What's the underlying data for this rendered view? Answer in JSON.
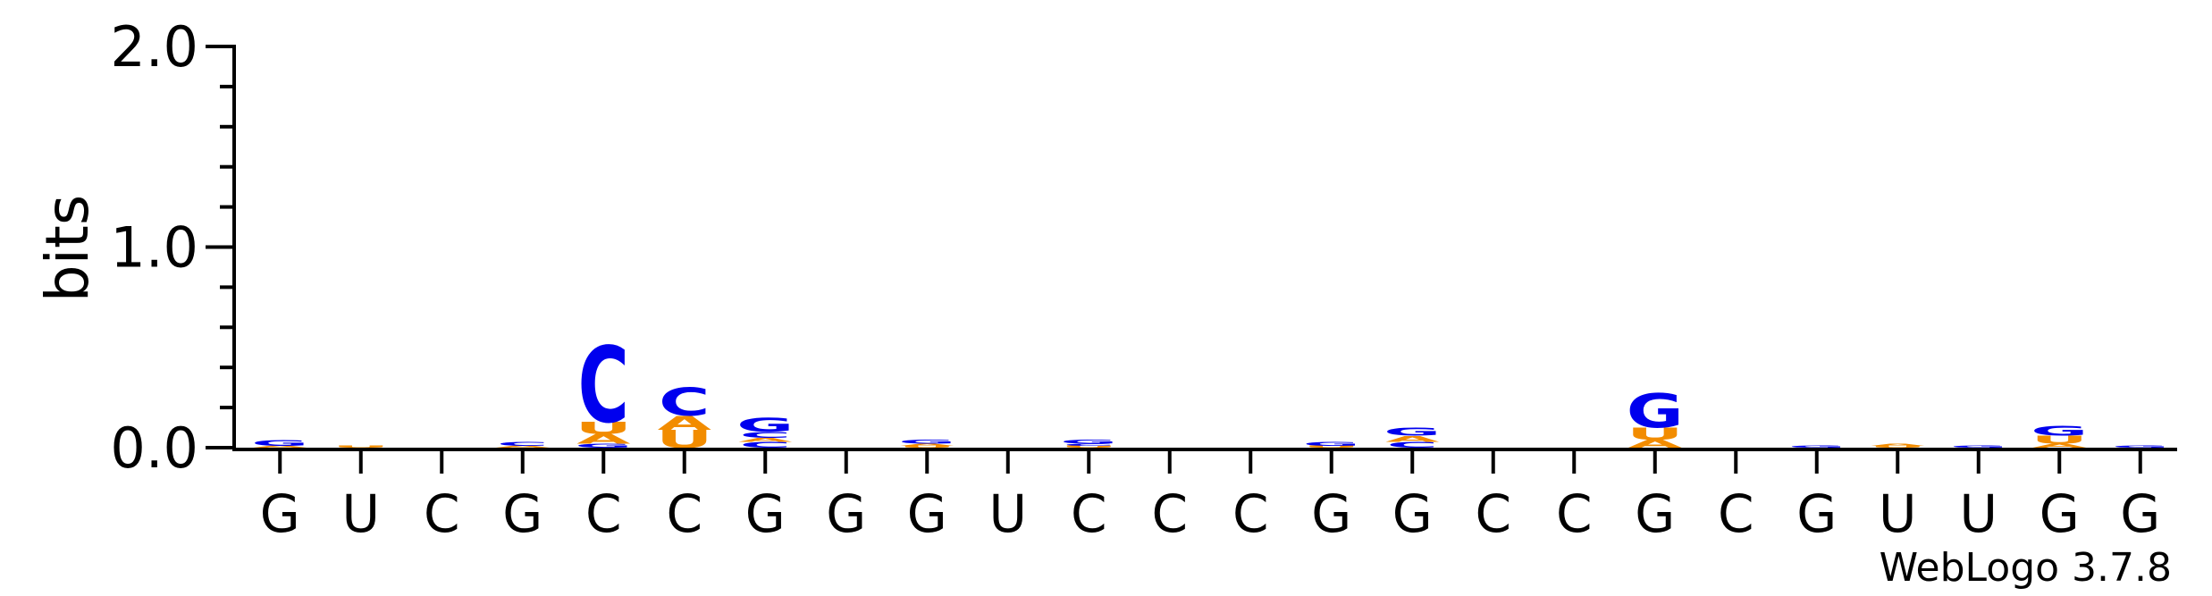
{
  "chart_data": {
    "type": "sequence-logo",
    "title": "",
    "ylabel": "bits",
    "xlabel": "",
    "ylim": [
      0,
      2
    ],
    "yticks": [
      "0.0",
      "1.0",
      "2.0"
    ],
    "x_labels": [
      "G",
      "U",
      "C",
      "G",
      "C",
      "C",
      "G",
      "G",
      "G",
      "U",
      "C",
      "C",
      "C",
      "G",
      "G",
      "C",
      "C",
      "G",
      "C",
      "G",
      "U",
      "U",
      "G",
      "G"
    ],
    "colors": {
      "A": "#f28c00",
      "C": "#0000ee",
      "G": "#0000ee",
      "U": "#f28c00"
    },
    "stacks": [
      [
        {
          "l": "A",
          "v": 0.01
        },
        {
          "l": "G",
          "v": 0.03
        }
      ],
      [
        {
          "l": "U",
          "v": 0.01
        }
      ],
      [],
      [
        {
          "l": "A",
          "v": 0.01
        },
        {
          "l": "C",
          "v": 0.02
        }
      ],
      [
        {
          "l": "G",
          "v": 0.02
        },
        {
          "l": "A",
          "v": 0.05
        },
        {
          "l": "U",
          "v": 0.06
        },
        {
          "l": "C",
          "v": 0.38
        }
      ],
      [
        {
          "l": "U",
          "v": 0.09
        },
        {
          "l": "A",
          "v": 0.07
        },
        {
          "l": "C",
          "v": 0.14
        }
      ],
      [
        {
          "l": "C",
          "v": 0.03
        },
        {
          "l": "A",
          "v": 0.02
        },
        {
          "l": "C",
          "v": 0.03
        },
        {
          "l": "G",
          "v": 0.07
        }
      ],
      [],
      [
        {
          "l": "U",
          "v": 0.01
        },
        {
          "l": "A",
          "v": 0.01
        },
        {
          "l": "G",
          "v": 0.02
        }
      ],
      [],
      [
        {
          "l": "U",
          "v": 0.01
        },
        {
          "l": "C",
          "v": 0.01
        },
        {
          "l": "G",
          "v": 0.02
        }
      ],
      [],
      [],
      [
        {
          "l": "U",
          "v": 0.01
        },
        {
          "l": "G",
          "v": 0.02
        }
      ],
      [
        {
          "l": "C",
          "v": 0.03
        },
        {
          "l": "A",
          "v": 0.03
        },
        {
          "l": "G",
          "v": 0.04
        }
      ],
      [],
      [],
      [
        {
          "l": "A",
          "v": 0.04
        },
        {
          "l": "U",
          "v": 0.06
        },
        {
          "l": "G",
          "v": 0.17
        }
      ],
      [],
      [
        {
          "l": "G",
          "v": 0.01
        }
      ],
      [
        {
          "l": "U",
          "v": 0.01
        },
        {
          "l": "A",
          "v": 0.01
        }
      ],
      [
        {
          "l": "G",
          "v": 0.01
        }
      ],
      [
        {
          "l": "A",
          "v": 0.02
        },
        {
          "l": "U",
          "v": 0.04
        },
        {
          "l": "G",
          "v": 0.05
        }
      ],
      [
        {
          "l": "G",
          "v": 0.01
        }
      ]
    ]
  },
  "footer": {
    "version_label": "WebLogo 3.7.8"
  }
}
